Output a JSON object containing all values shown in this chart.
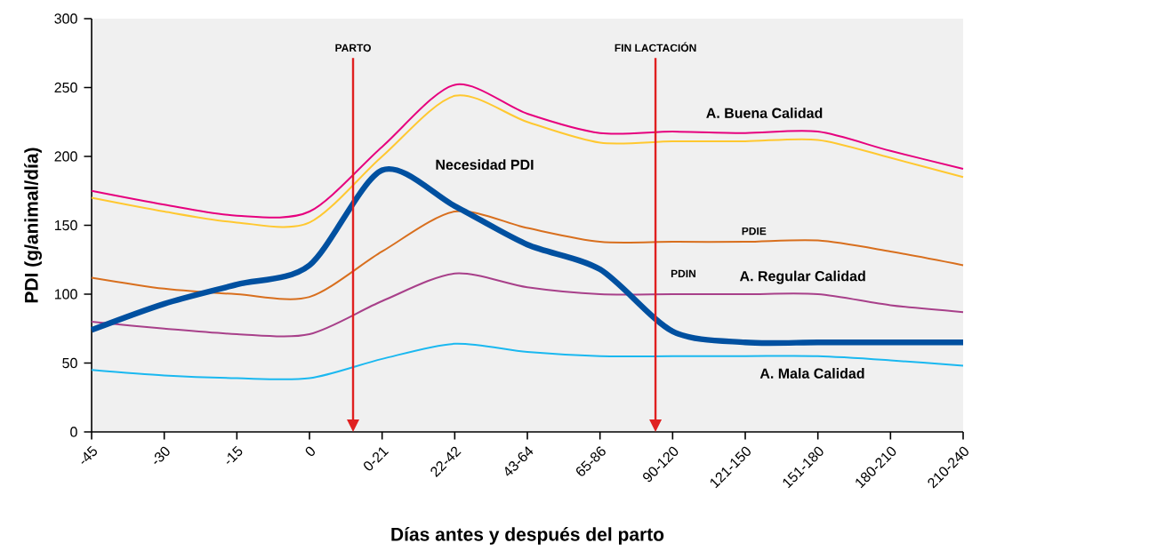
{
  "chart_data": {
    "type": "line",
    "xlabel": "Días antes y después del parto",
    "ylabel": "PDI (g/animal/día)",
    "categories": [
      "-45",
      "-30",
      "-15",
      "0",
      "0-21",
      "22-42",
      "43-64",
      "65-86",
      "90-120",
      "121-150",
      "151-180",
      "180-210",
      "210-240"
    ],
    "series": [
      {
        "color": "#e6007e",
        "values": [
          175,
          165,
          157,
          160,
          207,
          252,
          231,
          217,
          218,
          217,
          218,
          204,
          191
        ]
      },
      {
        "color": "#ffc830",
        "values": [
          170,
          160,
          152,
          152,
          200,
          244,
          225,
          210,
          211,
          211,
          212,
          199,
          185
        ]
      },
      {
        "color": "#d86f1e",
        "values": [
          112,
          104,
          100,
          98,
          131,
          160,
          148,
          138,
          138,
          138,
          139,
          131,
          121
        ]
      },
      {
        "color": "#a8408a",
        "values": [
          80,
          75,
          71,
          71,
          95,
          115,
          105,
          100,
          100,
          100,
          100,
          92,
          87
        ]
      },
      {
        "color": "#1ab8f0",
        "values": [
          45,
          41,
          39,
          39,
          53,
          64,
          58,
          55,
          55,
          55,
          55,
          52,
          48
        ]
      },
      {
        "color": "#0050a0",
        "values": [
          74,
          93,
          107,
          121,
          190,
          164,
          136,
          118,
          73,
          65,
          65,
          65,
          65
        ]
      }
    ],
    "ylim": [
      0,
      300
    ],
    "yticks": [
      0,
      50,
      100,
      150,
      200,
      250,
      300
    ],
    "grid": false,
    "marker": "none",
    "line_style": "solid",
    "annotations": [
      "PARTO",
      "FIN LACTACIÓN",
      "Necesidad PDI",
      "A. Buena Calidad",
      "PDIE",
      "PDIN",
      "A. Regular Calidad",
      "A. Mala Calidad"
    ]
  }
}
